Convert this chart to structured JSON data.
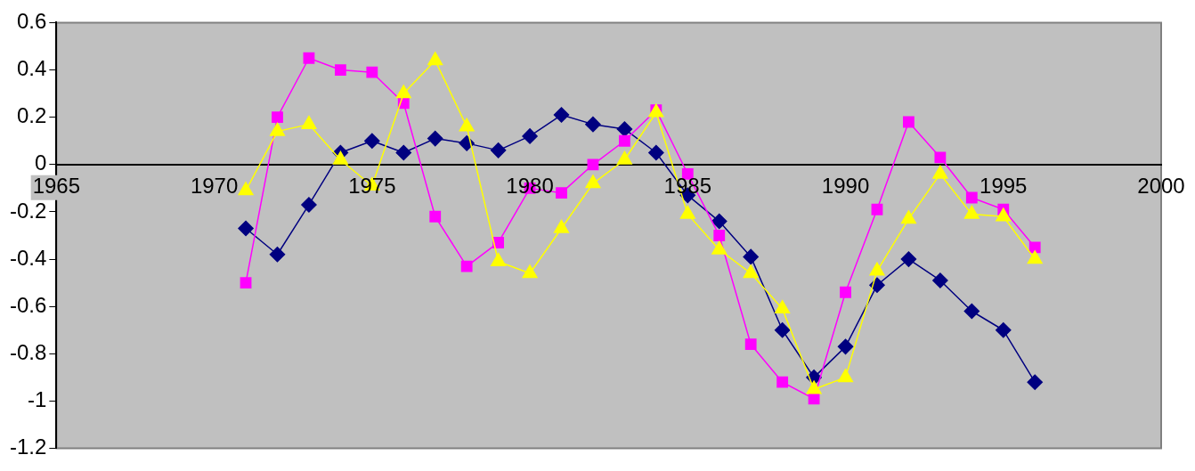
{
  "chart_data": {
    "type": "line",
    "xlim": [
      1965,
      2000
    ],
    "xticks": [
      1965,
      1970,
      1975,
      1980,
      1985,
      1990,
      1995,
      2000
    ],
    "ylim": [
      -1.2,
      0.6
    ],
    "yticks": [
      -1.2,
      -1,
      -0.8,
      -0.6,
      -0.4,
      -0.2,
      0,
      0.2,
      0.4,
      0.6
    ],
    "grid": false,
    "legend": false,
    "line_style": "solid",
    "x": [
      1971,
      1972,
      1973,
      1974,
      1975,
      1976,
      1977,
      1978,
      1979,
      1980,
      1981,
      1982,
      1983,
      1984,
      1985,
      1986,
      1987,
      1988,
      1989,
      1990,
      1991,
      1992,
      1993,
      1994,
      1995,
      1996
    ],
    "series": [
      {
        "color": "#000080",
        "marker": "diamond",
        "values": [
          -0.27,
          -0.38,
          -0.17,
          0.05,
          0.1,
          0.05,
          0.11,
          0.09,
          0.06,
          0.12,
          0.21,
          0.17,
          0.15,
          0.05,
          -0.13,
          -0.24,
          -0.39,
          -0.7,
          -0.9,
          -0.77,
          -0.51,
          -0.4,
          -0.49,
          -0.62,
          -0.7,
          -0.92
        ]
      },
      {
        "color": "#ff00ff",
        "marker": "square",
        "values": [
          -0.5,
          0.2,
          0.45,
          0.4,
          0.39,
          0.26,
          -0.22,
          -0.43,
          -0.33,
          -0.1,
          -0.12,
          0,
          0.1,
          0.23,
          -0.04,
          -0.3,
          -0.76,
          -0.92,
          -0.99,
          -0.54,
          -0.19,
          0.18,
          0.03,
          -0.14,
          -0.19,
          -0.35
        ]
      },
      {
        "color": "#ffff00",
        "marker": "triangle",
        "values": [
          -0.11,
          0.14,
          0.17,
          0.02,
          -0.09,
          0.3,
          0.44,
          0.16,
          -0.41,
          -0.46,
          -0.27,
          -0.08,
          0.02,
          0.22,
          -0.21,
          -0.36,
          -0.46,
          -0.61,
          -0.95,
          -0.9,
          -0.45,
          -0.23,
          -0.04,
          -0.21,
          -0.22,
          -0.4
        ]
      }
    ]
  }
}
